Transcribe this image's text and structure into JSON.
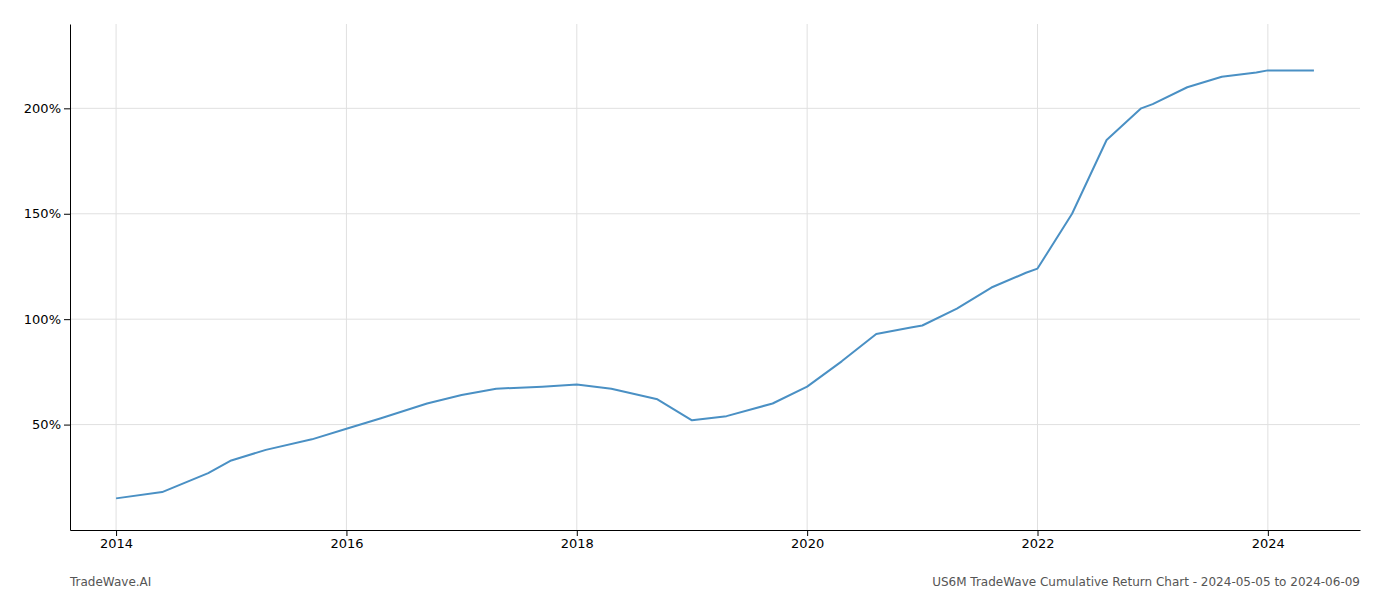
{
  "chart_data": {
    "type": "line",
    "x": [
      2014.0,
      2014.4,
      2014.8,
      2015.0,
      2015.3,
      2015.7,
      2016.0,
      2016.3,
      2016.7,
      2017.0,
      2017.3,
      2017.7,
      2018.0,
      2018.3,
      2018.7,
      2019.0,
      2019.3,
      2019.7,
      2020.0,
      2020.3,
      2020.6,
      2020.9,
      2021.0,
      2021.3,
      2021.6,
      2021.9,
      2022.0,
      2022.3,
      2022.6,
      2022.9,
      2023.0,
      2023.3,
      2023.6,
      2023.9,
      2024.0,
      2024.4
    ],
    "values": [
      15,
      18,
      27,
      33,
      38,
      43,
      48,
      53,
      60,
      64,
      67,
      68,
      69,
      67,
      62,
      52,
      54,
      60,
      68,
      80,
      93,
      96,
      97,
      105,
      115,
      122,
      124,
      150,
      185,
      200,
      202,
      210,
      215,
      217,
      218,
      218
    ],
    "color": "#4a90c4",
    "xlim": [
      2013.6,
      2024.8
    ],
    "xticks": [
      2014,
      2016,
      2018,
      2020,
      2022,
      2024
    ],
    "ylim": [
      0,
      240
    ],
    "yticks": [
      {
        "value": 50,
        "label": "50%"
      },
      {
        "value": 100,
        "label": "100%"
      },
      {
        "value": 150,
        "label": "150%"
      },
      {
        "value": 200,
        "label": "200%"
      }
    ],
    "grid": true,
    "annotations": [
      "TradeWave.AI",
      "US6M TradeWave Cumulative Return Chart - 2024-05-05 to 2024-06-09"
    ]
  }
}
